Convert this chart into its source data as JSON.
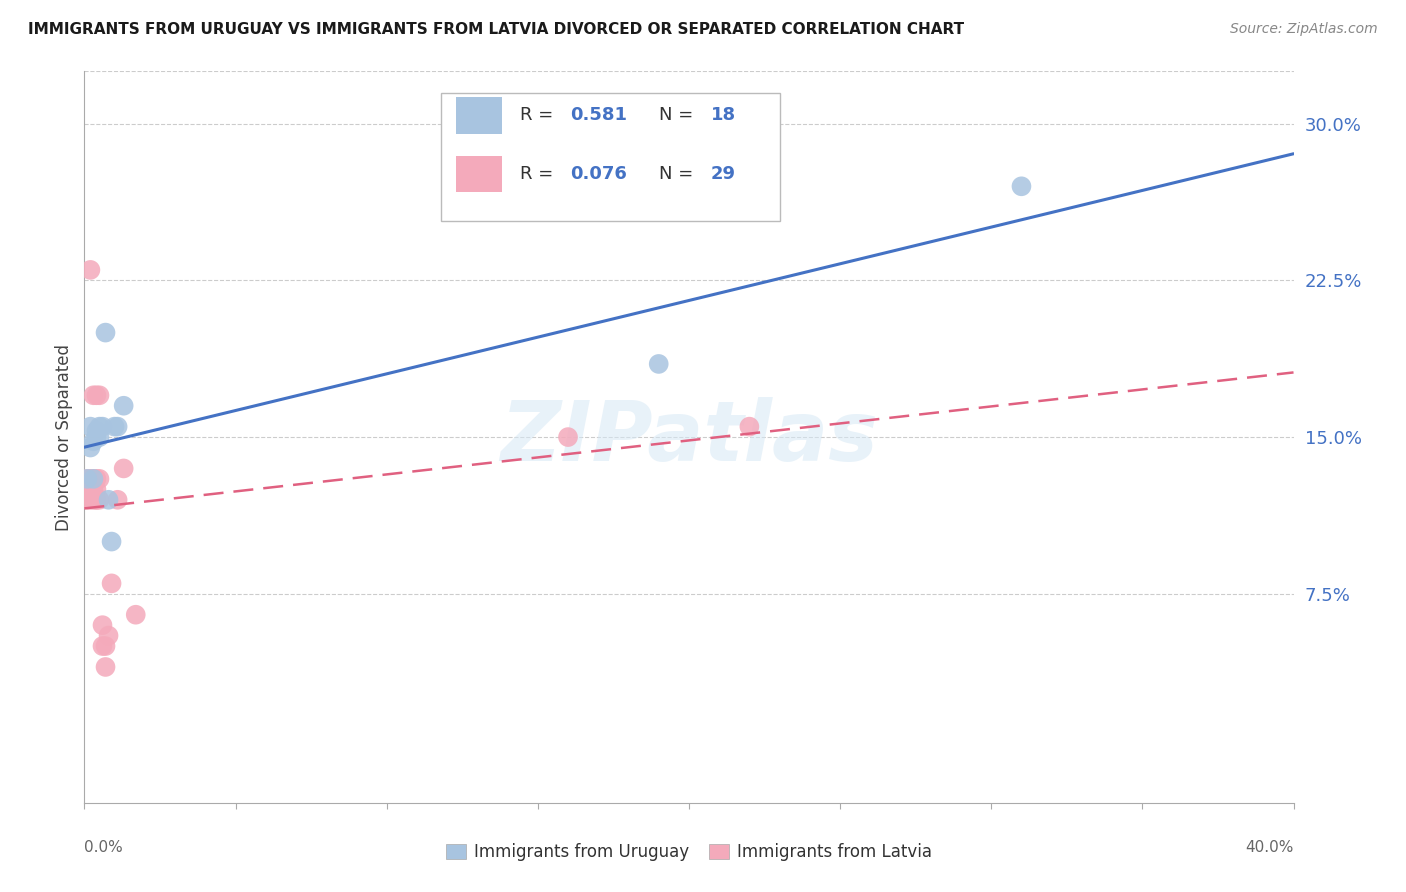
{
  "title": "IMMIGRANTS FROM URUGUAY VS IMMIGRANTS FROM LATVIA DIVORCED OR SEPARATED CORRELATION CHART",
  "source": "Source: ZipAtlas.com",
  "ylabel": "Divorced or Separated",
  "right_yticks": [
    0.0,
    0.075,
    0.15,
    0.225,
    0.3
  ],
  "right_yticklabels": [
    "",
    "7.5%",
    "15.0%",
    "22.5%",
    "30.0%"
  ],
  "xlim": [
    0.0,
    0.4
  ],
  "ylim": [
    -0.025,
    0.325
  ],
  "uruguay_R": 0.581,
  "uruguay_N": 18,
  "latvia_R": 0.076,
  "latvia_N": 29,
  "uruguay_color": "#A8C4E0",
  "latvia_color": "#F4AABB",
  "uruguay_line_color": "#4472C4",
  "latvia_line_color": "#E06080",
  "watermark": "ZIPatlas",
  "legend_label_uruguay": "Immigrants from Uruguay",
  "legend_label_latvia": "Immigrants from Latvia",
  "uruguay_x": [
    0.001,
    0.002,
    0.002,
    0.003,
    0.003,
    0.004,
    0.004,
    0.005,
    0.005,
    0.006,
    0.007,
    0.008,
    0.009,
    0.01,
    0.011,
    0.013,
    0.19,
    0.31
  ],
  "uruguay_y": [
    0.13,
    0.145,
    0.155,
    0.13,
    0.148,
    0.15,
    0.153,
    0.15,
    0.155,
    0.155,
    0.2,
    0.12,
    0.1,
    0.155,
    0.155,
    0.165,
    0.185,
    0.27
  ],
  "latvia_x": [
    0.001,
    0.001,
    0.002,
    0.002,
    0.002,
    0.002,
    0.003,
    0.003,
    0.003,
    0.003,
    0.004,
    0.004,
    0.004,
    0.004,
    0.004,
    0.005,
    0.005,
    0.005,
    0.006,
    0.006,
    0.007,
    0.007,
    0.008,
    0.009,
    0.011,
    0.013,
    0.017,
    0.16,
    0.22
  ],
  "latvia_y": [
    0.12,
    0.13,
    0.12,
    0.125,
    0.13,
    0.23,
    0.12,
    0.125,
    0.13,
    0.17,
    0.12,
    0.125,
    0.13,
    0.17,
    0.12,
    0.12,
    0.13,
    0.17,
    0.05,
    0.06,
    0.04,
    0.05,
    0.055,
    0.08,
    0.12,
    0.135,
    0.065,
    0.15,
    0.155
  ],
  "grid_color": "#CCCCCC",
  "spine_color": "#AAAAAA",
  "tick_label_color": "#666666",
  "right_label_color": "#4472C4"
}
